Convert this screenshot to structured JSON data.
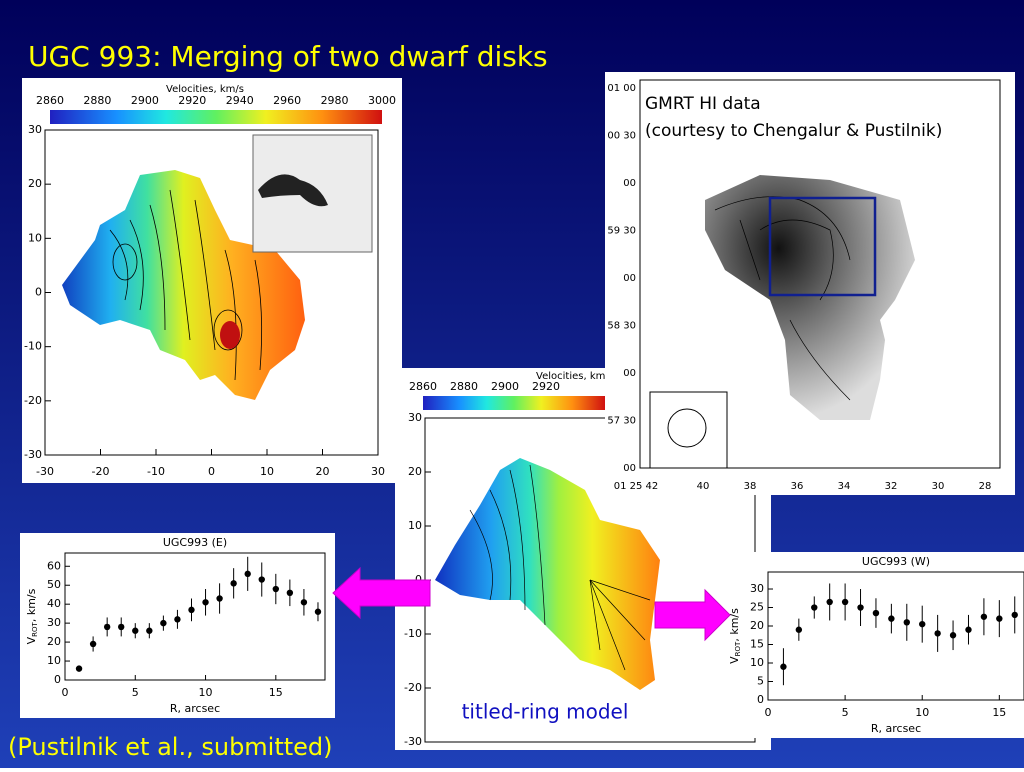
{
  "title": "UGC 993: Merging of two dwarf disks",
  "citation": "(Pustilnik et al., submitted)",
  "model_label": "titled-ring model",
  "map_left": {
    "colorbar_title": "Velocities, km/s",
    "colorbar_ticks": [
      2860,
      2880,
      2900,
      2920,
      2940,
      2960,
      2980,
      3000
    ],
    "xticks": [
      -30,
      -20,
      -10,
      0,
      10,
      20,
      30
    ],
    "yticks": [
      30,
      20,
      10,
      0,
      -10,
      -20,
      -30
    ]
  },
  "map_center": {
    "colorbar_title": "Velocities, km/s",
    "colorbar_ticks": [
      2860,
      2880,
      2900,
      2920
    ],
    "yticks": [
      30,
      20,
      10,
      0,
      -10,
      -20,
      -30
    ]
  },
  "gmrt": {
    "line1": "GMRT HI data",
    "line2": "(courtesy to Chengalur & Pustilnik)",
    "yticks": [
      "01 00",
      "00 30",
      "00",
      "59 30",
      "00",
      "58 30",
      "00",
      "57 30",
      "00"
    ],
    "xticks": [
      "01 25 42",
      "40",
      "38",
      "36",
      "34",
      "32",
      "30",
      "28"
    ]
  },
  "curve_e": {
    "title": "UGC993 (E)",
    "xlabel": "R, arcsec",
    "ylabel": [
      "V",
      "ROT",
      ", km/s"
    ],
    "xlim": [
      0,
      18.5
    ],
    "ylim": [
      0,
      67
    ],
    "xticks": [
      0,
      5,
      10,
      15
    ],
    "yticks": [
      0,
      10,
      20,
      30,
      40,
      50,
      60
    ],
    "x": [
      1,
      2,
      3,
      4,
      5,
      6,
      7,
      8,
      9,
      10,
      11,
      12,
      13,
      14,
      15,
      16,
      17,
      18
    ],
    "values": [
      6,
      19,
      28,
      28,
      26,
      26,
      30,
      32,
      37,
      41,
      43,
      51,
      56,
      53,
      48,
      46,
      41,
      36
    ],
    "errors": [
      0,
      4,
      5,
      5,
      4,
      4,
      4,
      5,
      6,
      7,
      8,
      8,
      9,
      9,
      8,
      7,
      7,
      5
    ]
  },
  "curve_w": {
    "title": "UGC993 (W)",
    "xlabel": "R, arcsec",
    "ylabel": [
      "V",
      "ROT",
      ", km/s"
    ],
    "xlim": [
      0,
      16.6
    ],
    "ylim": [
      0,
      34.6
    ],
    "xticks": [
      0,
      5,
      10,
      15
    ],
    "yticks": [
      0,
      5,
      10,
      15,
      20,
      25,
      30
    ],
    "x": [
      1,
      2,
      3,
      4,
      5,
      6,
      7,
      8,
      9,
      10,
      11,
      12,
      13,
      14,
      15,
      16
    ],
    "values": [
      9,
      19,
      25,
      26.5,
      26.5,
      25,
      23.5,
      22,
      21,
      20.5,
      18,
      17.5,
      19,
      22.5,
      22,
      23
    ],
    "errors": [
      5,
      3,
      3,
      5,
      5,
      5,
      4,
      4,
      5,
      5,
      5,
      4,
      4,
      5,
      5,
      5
    ]
  }
}
